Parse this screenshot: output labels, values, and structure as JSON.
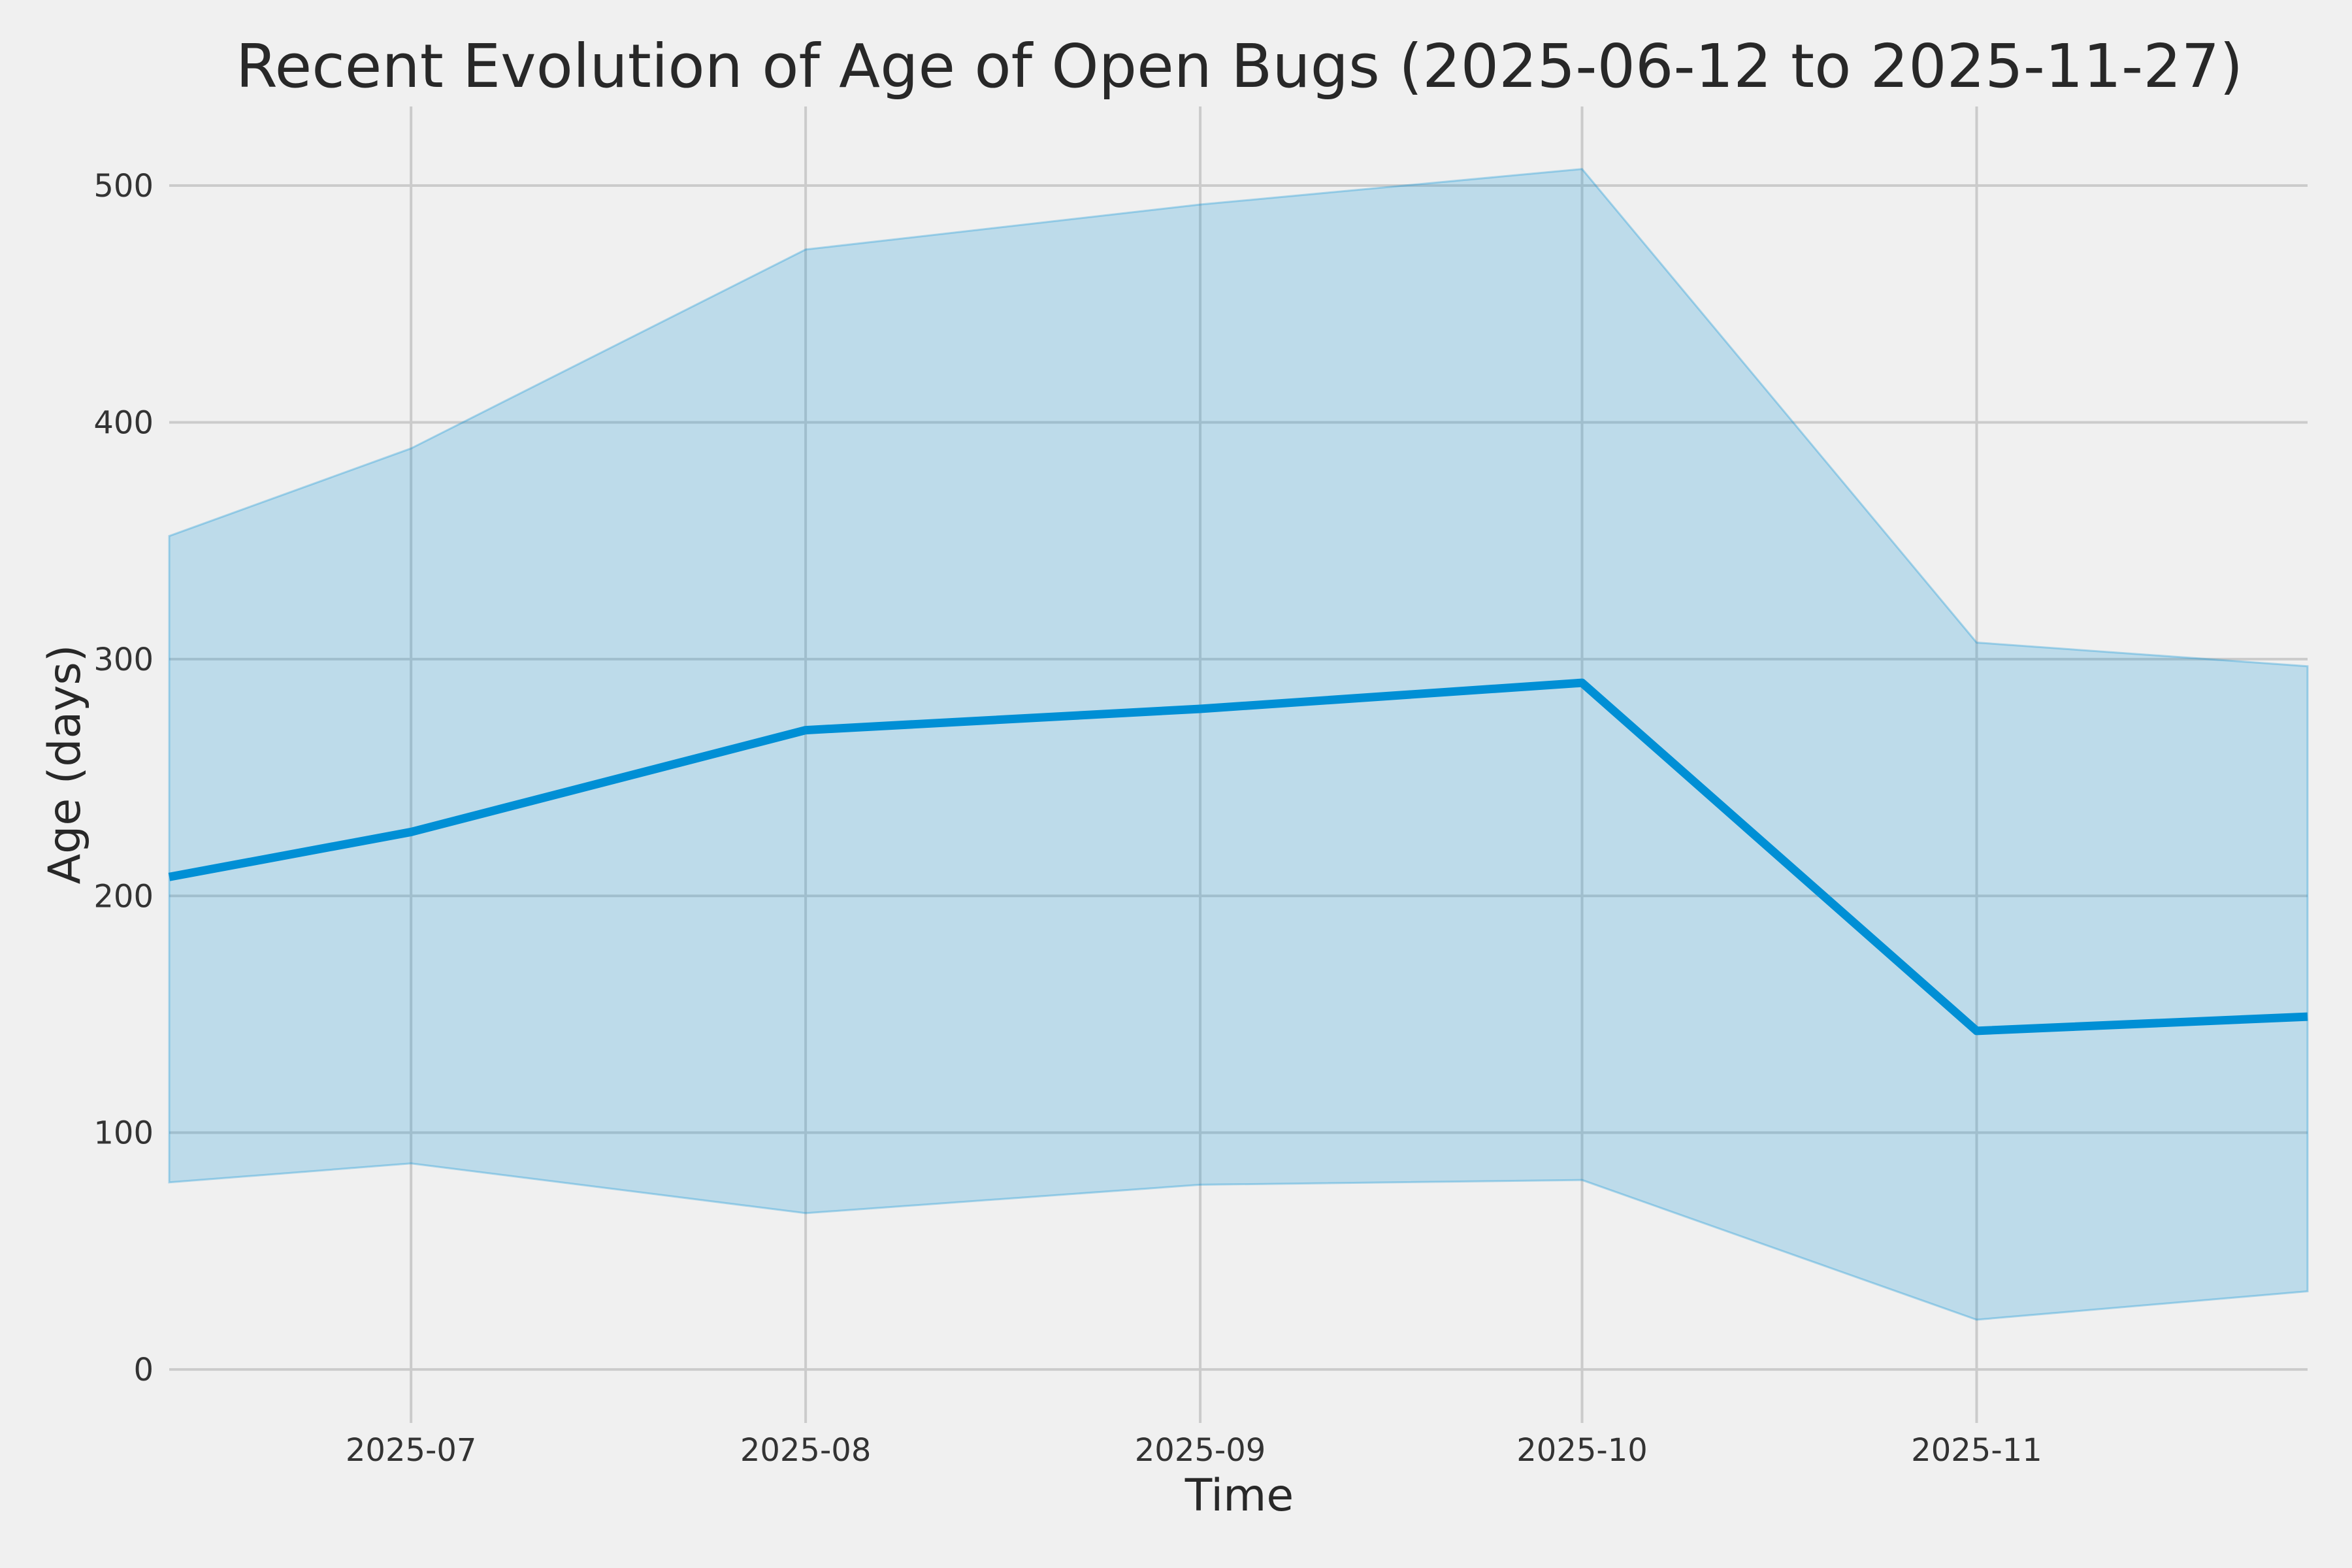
{
  "figure": {
    "background": "#f0f0f0"
  },
  "chart_data": {
    "type": "line",
    "title": "Recent Evolution of Age of Open Bugs (2025-06-12 to 2025-11-27)",
    "xlabel": "Time",
    "ylabel": "Age (days)",
    "grid": true,
    "legend_position": "none",
    "date_range": [
      "2025-06-12",
      "2025-11-27"
    ],
    "x": [
      "2025-06-12",
      "2025-07-01",
      "2025-08-01",
      "2025-09-01",
      "2025-10-01",
      "2025-11-01",
      "2025-11-27"
    ],
    "x_days": [
      0,
      19,
      50,
      81,
      111,
      142,
      168
    ],
    "series": [
      {
        "name": "mean_age_days",
        "role": "line",
        "values": [
          208,
          227,
          270,
          279,
          290,
          143,
          149
        ]
      },
      {
        "name": "band_upper_age",
        "role": "band-upper",
        "values": [
          352,
          389,
          473,
          492,
          507,
          307,
          297
        ]
      },
      {
        "name": "band_lower_age",
        "role": "band-lower",
        "values": [
          79,
          87,
          66,
          78,
          80,
          21,
          33
        ]
      }
    ],
    "x_ticks": [
      {
        "label": "2025-07",
        "day": 19
      },
      {
        "label": "2025-08",
        "day": 50
      },
      {
        "label": "2025-09",
        "day": 81
      },
      {
        "label": "2025-10",
        "day": 111
      },
      {
        "label": "2025-11",
        "day": 142
      }
    ],
    "y_ticks": [
      {
        "label": "0",
        "value": 0
      },
      {
        "label": "100",
        "value": 100
      },
      {
        "label": "200",
        "value": 200
      },
      {
        "label": "300",
        "value": 300
      },
      {
        "label": "400",
        "value": 400
      },
      {
        "label": "500",
        "value": 500
      }
    ],
    "xlim_days": [
      0,
      168
    ],
    "ylim": [
      -22.6,
      533.4
    ],
    "colors": {
      "line": "#008fd5",
      "band_fill": "rgba(0,143,213,0.21)",
      "band_edge": "rgba(0,143,213,0.30)",
      "grid": "#cbcbcb",
      "text": "#282828",
      "background": "#f0f0f0"
    }
  }
}
